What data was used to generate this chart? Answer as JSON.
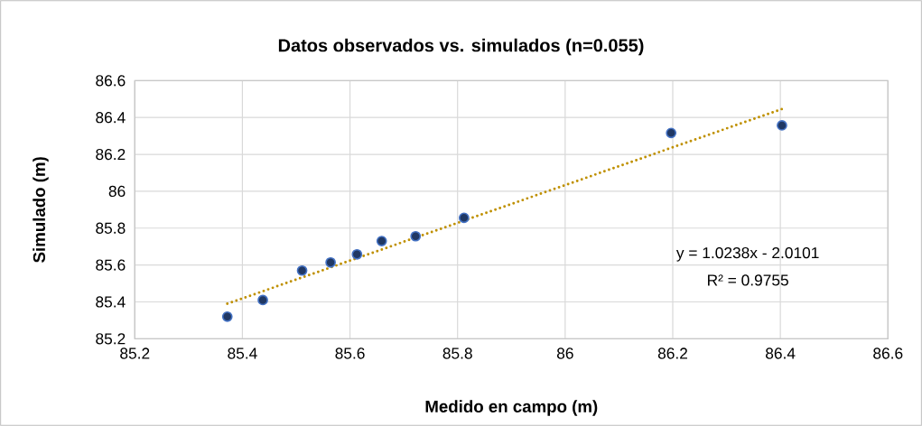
{
  "chart_data": {
    "type": "scatter",
    "title": "Datos observados vs. simulados (n=0.055)",
    "xlabel": "Medido en campo (m)",
    "ylabel": "Simulado (m)",
    "series": [
      {
        "color": "#203864",
        "marker": "circle",
        "x": [
          85.372,
          85.438,
          85.511,
          85.564,
          85.613,
          85.659,
          85.722,
          85.812,
          86.197,
          86.403
        ],
        "values": [
          85.32,
          85.41,
          85.57,
          85.614,
          85.658,
          85.73,
          85.756,
          85.856,
          86.316,
          86.357
        ]
      },
      {
        "type": "line",
        "color": "#bf9000",
        "line_style": "dotted",
        "x": [
          85.372,
          86.403
        ],
        "values": [
          85.39,
          86.446
        ]
      }
    ],
    "xlim": [
      85.2,
      86.6
    ],
    "ylim": [
      85.2,
      86.6
    ],
    "xticks": [
      85.2,
      85.4,
      85.6,
      85.8,
      86,
      86.2,
      86.4,
      86.6
    ],
    "yticks": [
      85.2,
      85.4,
      85.6,
      85.8,
      86,
      86.2,
      86.4,
      86.6
    ],
    "grid": true,
    "annotations": [
      "y = 1.0238x - 2.0101",
      "R² = 0.9755"
    ]
  }
}
